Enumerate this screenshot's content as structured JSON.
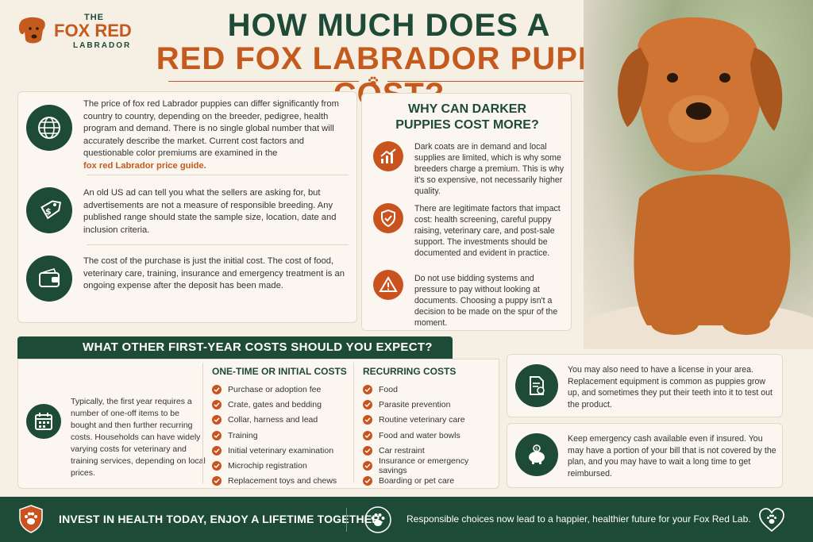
{
  "logo": {
    "line1": "THE",
    "line2": "FOX RED",
    "line3": "LABRADOR",
    "icon": "dog-head-icon"
  },
  "header": {
    "title_line1": "HOW MUCH DOES A",
    "title_line2": "RED FOX LABRADOR PUPPY COST?"
  },
  "left_card": {
    "items": [
      {
        "icon": "globe-icon",
        "text": "The price of fox red Labrador puppies can differ significantly from country to country, depending on the breeder, pedigree, health program and demand. There is no single global number that will accurately describe the market. Current cost factors and questionable color premiums are examined in the",
        "link": "fox red Labrador price guide."
      },
      {
        "icon": "price-tag-icon",
        "text": "An old US ad can tell you what the sellers are asking for, but advertisements are not a measure of responsible breeding. Any published range should state the sample size, location, date and inclusion criteria."
      },
      {
        "icon": "wallet-icon",
        "text": "The cost of the purchase is just the initial cost. The cost of food, veterinary care, training, insurance and emergency treatment is an ongoing expense after the deposit has been made."
      }
    ]
  },
  "mid_card": {
    "title_line1": "WHY CAN DARKER",
    "title_line2": "PUPPIES COST MORE?",
    "items": [
      {
        "icon": "trend-up-icon",
        "text": "Dark coats are in demand and local supplies are limited, which is why some breeders charge a premium. This is why it's so expensive, not necessarily higher quality."
      },
      {
        "icon": "shield-check-icon",
        "text": "There are legitimate factors that impact cost: health screening, careful puppy raising, veterinary care, and post-sale support. The investments should be documented and evident in practice."
      },
      {
        "icon": "warning-icon",
        "text": "Do not use bidding systems and pressure to pay without looking at documents. Choosing a puppy isn't a decision to be made on the spur of the moment."
      }
    ]
  },
  "first_year": {
    "banner": "WHAT OTHER FIRST-YEAR COSTS SHOULD YOU EXPECT?",
    "intro": "Typically, the first year requires a number of one-off items to be bought and then further recurring costs. Households can have widely varying costs for veterinary and training services, depending on local prices.",
    "one_time_title": "ONE-TIME OR INITIAL COSTS",
    "one_time": [
      "Purchase or adoption fee",
      "Crate, gates and bedding",
      "Collar, harness and lead",
      "Training",
      "Initial veterinary examination",
      "Microchip registration",
      "Replacement toys and chews"
    ],
    "recurring_title": "RECURRING COSTS",
    "recurring": [
      "Food",
      "Parasite prevention",
      "Routine veterinary care",
      "Food and water bowls",
      "Car restraint",
      "Insurance or emergency savings",
      "Boarding or pet care"
    ]
  },
  "right_cards": [
    {
      "icon": "license-document-icon",
      "text": "You may also need to have a license in your area. Replacement equipment is common as puppies grow up, and sometimes they put their teeth into it to test out the product."
    },
    {
      "icon": "piggy-bank-icon",
      "text": "Keep emergency cash available even if insured. You may have a portion of your bill that is not covered by the plan, and you may have to wait a long time to get reimbursed."
    }
  ],
  "footer": {
    "left": "INVEST IN HEALTH TODAY, ENJOY A LIFETIME TOGETHER.",
    "right": "Responsible choices now lead to a happier, healthier future for your Fox Red Lab."
  },
  "colors": {
    "green": "#1e4a38",
    "orange": "#c45a1e",
    "background": "#f6efe4"
  }
}
